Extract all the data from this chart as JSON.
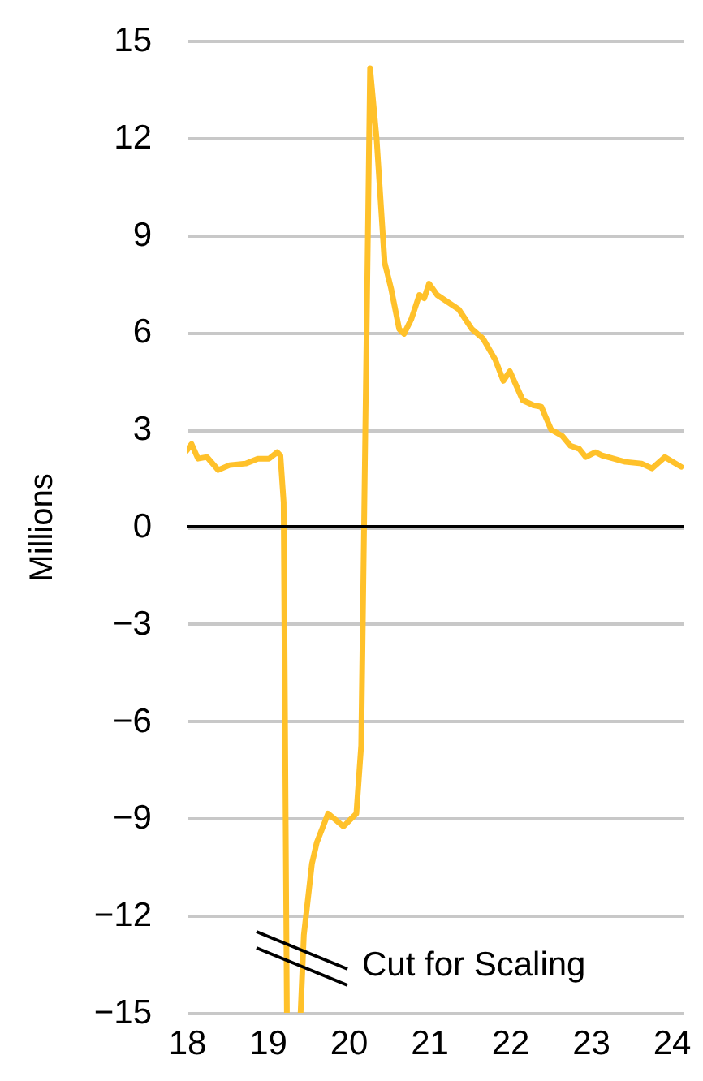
{
  "chart_data": {
    "type": "line",
    "ylabel": "Millions",
    "x": [
      18.0,
      18.06,
      18.14,
      18.25,
      18.39,
      18.53,
      18.73,
      18.88,
      19.02,
      19.12,
      19.16,
      19.2,
      19.24,
      19.3,
      19.41,
      19.45,
      19.55,
      19.61,
      19.75,
      19.94,
      20.1,
      20.16,
      20.27,
      20.35,
      20.45,
      20.53,
      20.63,
      20.69,
      20.78,
      20.88,
      20.94,
      21.0,
      21.1,
      21.37,
      21.53,
      21.67,
      21.82,
      21.92,
      22.0,
      22.16,
      22.29,
      22.39,
      22.51,
      22.65,
      22.75,
      22.86,
      22.94,
      23.06,
      23.14,
      23.43,
      23.63,
      23.76,
      23.92,
      24.02,
      24.12
    ],
    "series": [
      {
        "color": "#ffc12a",
        "values": [
          2.35,
          2.55,
          2.1,
          2.15,
          1.75,
          1.9,
          1.95,
          2.1,
          2.1,
          2.3,
          2.2,
          0.75,
          -15,
          null,
          -15,
          -12.6,
          -10.4,
          -9.75,
          -8.85,
          -9.25,
          -8.85,
          -6.75,
          14.15,
          12,
          8.15,
          7.35,
          6.1,
          5.95,
          6.4,
          7.15,
          7.05,
          7.5,
          7.15,
          6.7,
          6.1,
          5.8,
          5.15,
          4.5,
          4.8,
          3.9,
          3.75,
          3.7,
          3.0,
          2.8,
          2.5,
          2.4,
          2.15,
          2.3,
          2.2,
          2.0,
          1.95,
          1.8,
          2.15,
          2.0,
          1.85
        ]
      }
    ],
    "xlim": [
      18,
      24.15
    ],
    "xticks": [
      18,
      19,
      20,
      21,
      22,
      23,
      24
    ],
    "ylim": [
      -15,
      15
    ],
    "yticks": [
      -15,
      -12,
      -9,
      -6,
      -3,
      0,
      3,
      6,
      9,
      12,
      15
    ],
    "grid": "y",
    "ref_lines": [
      {
        "axis": "y",
        "value": 0,
        "color": "#000000"
      }
    ],
    "annotations": [
      "Cut for Scaling"
    ]
  }
}
